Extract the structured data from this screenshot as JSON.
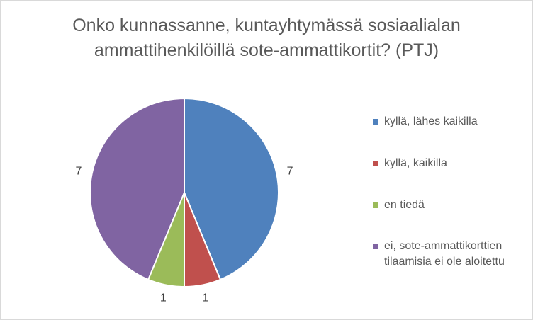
{
  "chart_data": {
    "type": "pie",
    "title_lines": [
      "Onko kunnassanne, kuntayhtymässä sosiaalialan",
      "ammattihenkilöillä sote-ammattikortit? (PTJ)"
    ],
    "categories": [
      "kyllä, lähes kaikilla",
      "kyllä, kaikilla",
      "en tiedä",
      "ei, sote-ammattikorttien tilaamisia ei ole aloitettu"
    ],
    "legend_lines": [
      [
        "kyllä, lähes kaikilla"
      ],
      [
        "kyllä, kaikilla"
      ],
      [
        "en tiedä"
      ],
      [
        "ei, sote-ammattikorttien",
        "tilaamisia ei ole aloitettu"
      ]
    ],
    "values": [
      7,
      1,
      1,
      7
    ],
    "data_labels": [
      "7",
      "1",
      "1",
      "7"
    ],
    "colors": [
      "#4f81bd",
      "#c0504d",
      "#9bbb59",
      "#8064a2"
    ],
    "legend_position": "right"
  }
}
